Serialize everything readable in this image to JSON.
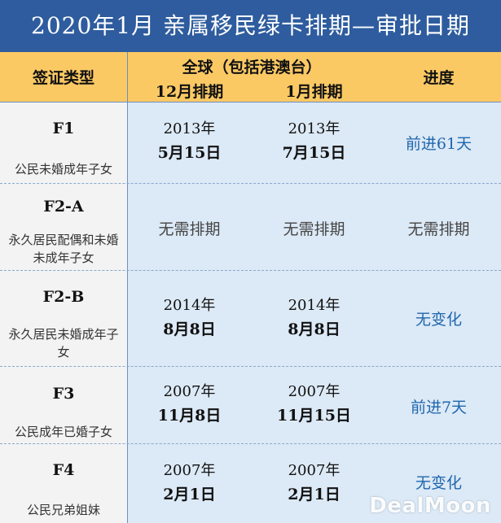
{
  "title": "2020年1月  亲属移民绿卡排期—审批日期",
  "header": {
    "visa_type": "签证类型",
    "global": "全球（包括港澳台）",
    "dec": "12月排期",
    "jan": "1月排期",
    "progress": "进度"
  },
  "rows": [
    {
      "code": "F1",
      "desc": "公民未婚成年子女",
      "dec_year": "2013年",
      "dec_md": "5月15日",
      "jan_year": "2013年",
      "jan_md": "7月15日",
      "progress": "前进61天",
      "progress_color": "#1f67ad"
    },
    {
      "code": "F2-A",
      "desc": "永久居民配偶和未婚未成年子女",
      "dec_text": "无需排期",
      "jan_text": "无需排期",
      "progress": "无需排期",
      "progress_color": "#444444"
    },
    {
      "code": "F2-B",
      "desc": "永久居民未婚成年子女",
      "dec_year": "2014年",
      "dec_md": "8月8日",
      "jan_year": "2014年",
      "jan_md": "8月8日",
      "progress": "无变化",
      "progress_color": "#1f67ad"
    },
    {
      "code": "F3",
      "desc": "公民成年已婚子女",
      "dec_year": "2007年",
      "dec_md": "11月8日",
      "jan_year": "2007年",
      "jan_md": "11月15日",
      "progress": "前进7天",
      "progress_color": "#1f67ad"
    },
    {
      "code": "F4",
      "desc": "公民兄弟姐妹",
      "dec_year": "2007年",
      "dec_md": "2月1日",
      "jan_year": "2007年",
      "jan_md": "2月1日",
      "progress": "无变化",
      "progress_color": "#1f67ad"
    }
  ],
  "watermark": "DealMoon"
}
